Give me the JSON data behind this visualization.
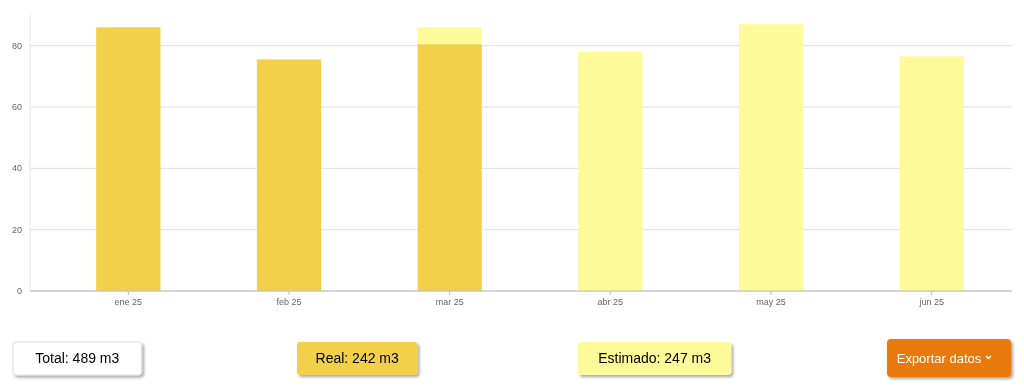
{
  "chart_data": {
    "type": "bar",
    "stacked": true,
    "categories": [
      "ene 25",
      "feb 25",
      "mar 25",
      "abr 25",
      "may 25",
      "jun 25"
    ],
    "series": [
      {
        "name": "Real: 242 m3",
        "color": "#f3d04a",
        "values": [
          86,
          75.5,
          80.5,
          null,
          null,
          null
        ]
      },
      {
        "name": "Estimado: 247 m3",
        "color": "#fffa99",
        "values": [
          null,
          null,
          5.5,
          78,
          87,
          76.5
        ]
      }
    ],
    "ylim": [
      0,
      90
    ],
    "yticks": [
      0,
      20,
      40,
      60,
      80
    ],
    "grid": "y",
    "legend": "bottom",
    "annotations": [
      "Total: 489 m3",
      "Exportar datos"
    ]
  }
}
